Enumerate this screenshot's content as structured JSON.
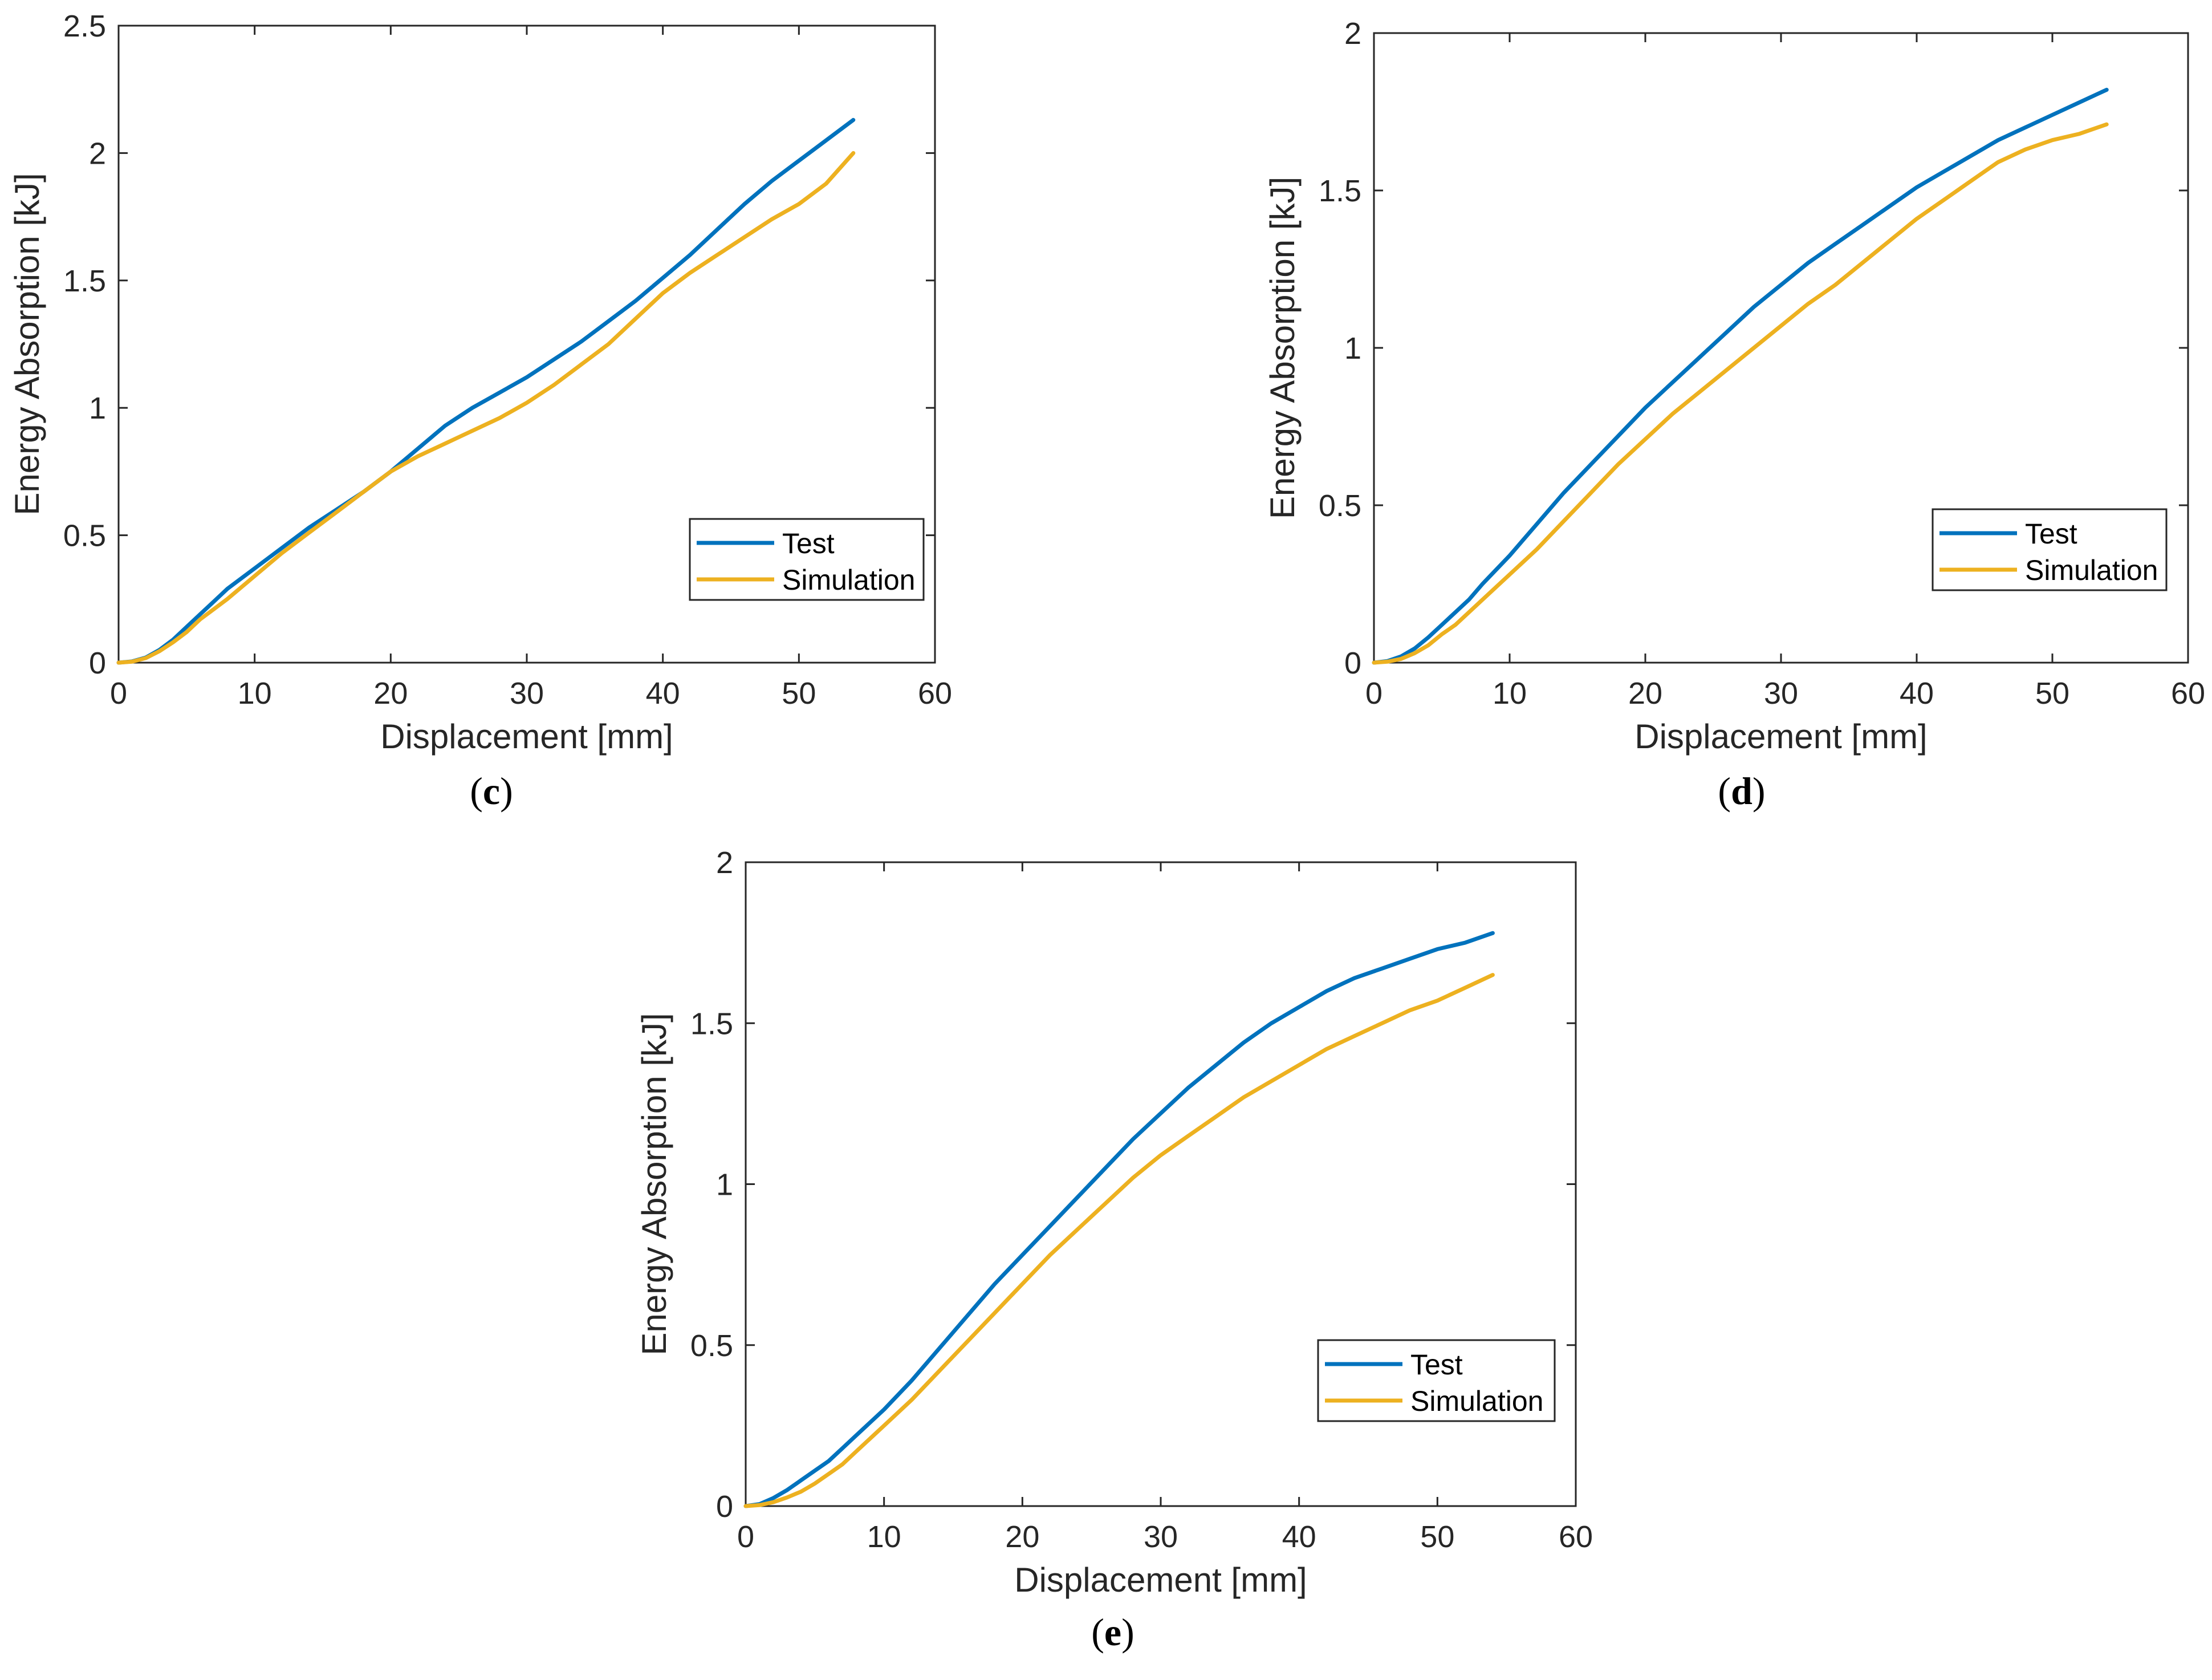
{
  "chart_data": [
    {
      "type": "line",
      "caption_letter": "c",
      "xlabel": "Displacement [mm]",
      "ylabel": "Energy Absorption [kJ]",
      "xlim": [
        0,
        60
      ],
      "ylim": [
        0,
        2.5
      ],
      "xticks": [
        0,
        10,
        20,
        30,
        40,
        50,
        60
      ],
      "yticks": [
        0,
        0.5,
        1,
        1.5,
        2,
        2.5
      ],
      "xtick_labels": [
        "0",
        "10",
        "20",
        "30",
        "40",
        "50",
        "60"
      ],
      "ytick_labels": [
        "0",
        "0.5",
        "1",
        "1.5",
        "2",
        "2.5"
      ],
      "grid": false,
      "legend_position": "lower-right",
      "series": [
        {
          "name": "Test",
          "color": "#0072BD",
          "x": [
            0,
            1,
            2,
            3,
            4,
            5,
            6,
            7,
            8,
            10,
            12,
            14,
            16,
            18,
            20,
            22,
            24,
            26,
            28,
            30,
            32,
            34,
            36,
            38,
            40,
            42,
            44,
            46,
            48,
            50,
            52,
            54
          ],
          "y": [
            0,
            0.005,
            0.02,
            0.05,
            0.09,
            0.14,
            0.19,
            0.24,
            0.29,
            0.37,
            0.45,
            0.53,
            0.6,
            0.67,
            0.75,
            0.84,
            0.93,
            1.0,
            1.06,
            1.12,
            1.19,
            1.26,
            1.34,
            1.42,
            1.51,
            1.6,
            1.7,
            1.8,
            1.89,
            1.97,
            2.05,
            2.13
          ]
        },
        {
          "name": "Simulation",
          "color": "#EDB120",
          "x": [
            0,
            1,
            2,
            3,
            4,
            5,
            6,
            7,
            8,
            10,
            12,
            14,
            16,
            18,
            20,
            22,
            24,
            26,
            28,
            30,
            32,
            34,
            36,
            38,
            40,
            42,
            44,
            46,
            48,
            50,
            52,
            54
          ],
          "y": [
            0,
            0.004,
            0.018,
            0.045,
            0.08,
            0.12,
            0.17,
            0.21,
            0.25,
            0.34,
            0.43,
            0.51,
            0.59,
            0.67,
            0.75,
            0.81,
            0.86,
            0.91,
            0.96,
            1.02,
            1.09,
            1.17,
            1.25,
            1.35,
            1.45,
            1.53,
            1.6,
            1.67,
            1.74,
            1.8,
            1.88,
            2.0
          ]
        }
      ]
    },
    {
      "type": "line",
      "caption_letter": "d",
      "xlabel": "Displacement [mm]",
      "ylabel": "Energy Absorption [kJ]",
      "xlim": [
        0,
        60
      ],
      "ylim": [
        0,
        2
      ],
      "xticks": [
        0,
        10,
        20,
        30,
        40,
        50,
        60
      ],
      "yticks": [
        0,
        0.5,
        1,
        1.5,
        2
      ],
      "xtick_labels": [
        "0",
        "10",
        "20",
        "30",
        "40",
        "50",
        "60"
      ],
      "ytick_labels": [
        "0",
        "0.5",
        "1",
        "1.5",
        "2"
      ],
      "grid": false,
      "legend_position": "lower-right",
      "series": [
        {
          "name": "Test",
          "color": "#0072BD",
          "x": [
            0,
            1,
            2,
            3,
            4,
            5,
            6,
            7,
            8,
            10,
            12,
            14,
            16,
            18,
            20,
            22,
            24,
            26,
            28,
            30,
            32,
            34,
            36,
            38,
            40,
            42,
            44,
            46,
            48,
            50,
            52,
            54
          ],
          "y": [
            0,
            0.005,
            0.02,
            0.045,
            0.08,
            0.12,
            0.16,
            0.2,
            0.25,
            0.34,
            0.44,
            0.54,
            0.63,
            0.72,
            0.81,
            0.89,
            0.97,
            1.05,
            1.13,
            1.2,
            1.27,
            1.33,
            1.39,
            1.45,
            1.51,
            1.56,
            1.61,
            1.66,
            1.7,
            1.74,
            1.78,
            1.82
          ]
        },
        {
          "name": "Simulation",
          "color": "#EDB120",
          "x": [
            0,
            1,
            2,
            3,
            4,
            5,
            6,
            7,
            8,
            10,
            12,
            14,
            16,
            18,
            20,
            22,
            24,
            26,
            28,
            30,
            32,
            34,
            36,
            38,
            40,
            42,
            44,
            46,
            48,
            50,
            52,
            54
          ],
          "y": [
            0,
            0.003,
            0.012,
            0.03,
            0.055,
            0.09,
            0.12,
            0.16,
            0.2,
            0.28,
            0.36,
            0.45,
            0.54,
            0.63,
            0.71,
            0.79,
            0.86,
            0.93,
            1.0,
            1.07,
            1.14,
            1.2,
            1.27,
            1.34,
            1.41,
            1.47,
            1.53,
            1.59,
            1.63,
            1.66,
            1.68,
            1.71
          ]
        }
      ]
    },
    {
      "type": "line",
      "caption_letter": "e",
      "xlabel": "Displacement [mm]",
      "ylabel": "Energy Absorption [kJ]",
      "xlim": [
        0,
        60
      ],
      "ylim": [
        0,
        2
      ],
      "xticks": [
        0,
        10,
        20,
        30,
        40,
        50,
        60
      ],
      "yticks": [
        0,
        0.5,
        1,
        1.5,
        2
      ],
      "xtick_labels": [
        "0",
        "10",
        "20",
        "30",
        "40",
        "50",
        "60"
      ],
      "ytick_labels": [
        "0",
        "0.5",
        "1",
        "1.5",
        "2"
      ],
      "grid": false,
      "legend_position": "lower-right",
      "series": [
        {
          "name": "Test",
          "color": "#0072BD",
          "x": [
            0,
            1,
            2,
            3,
            4,
            5,
            6,
            7,
            8,
            10,
            12,
            14,
            16,
            18,
            20,
            22,
            24,
            26,
            28,
            30,
            32,
            34,
            36,
            38,
            40,
            42,
            44,
            46,
            48,
            50,
            52,
            54
          ],
          "y": [
            0,
            0.006,
            0.025,
            0.05,
            0.08,
            0.11,
            0.14,
            0.18,
            0.22,
            0.3,
            0.39,
            0.49,
            0.59,
            0.69,
            0.78,
            0.87,
            0.96,
            1.05,
            1.14,
            1.22,
            1.3,
            1.37,
            1.44,
            1.5,
            1.55,
            1.6,
            1.64,
            1.67,
            1.7,
            1.73,
            1.75,
            1.78
          ]
        },
        {
          "name": "Simulation",
          "color": "#EDB120",
          "x": [
            0,
            1,
            2,
            3,
            4,
            5,
            6,
            7,
            8,
            10,
            12,
            14,
            16,
            18,
            20,
            22,
            24,
            26,
            28,
            30,
            32,
            34,
            36,
            38,
            40,
            42,
            44,
            46,
            48,
            50,
            52,
            54
          ],
          "y": [
            0,
            0.003,
            0.012,
            0.027,
            0.045,
            0.07,
            0.1,
            0.13,
            0.17,
            0.25,
            0.33,
            0.42,
            0.51,
            0.6,
            0.69,
            0.78,
            0.86,
            0.94,
            1.02,
            1.09,
            1.15,
            1.21,
            1.27,
            1.32,
            1.37,
            1.42,
            1.46,
            1.5,
            1.54,
            1.57,
            1.61,
            1.65
          ]
        }
      ]
    }
  ]
}
